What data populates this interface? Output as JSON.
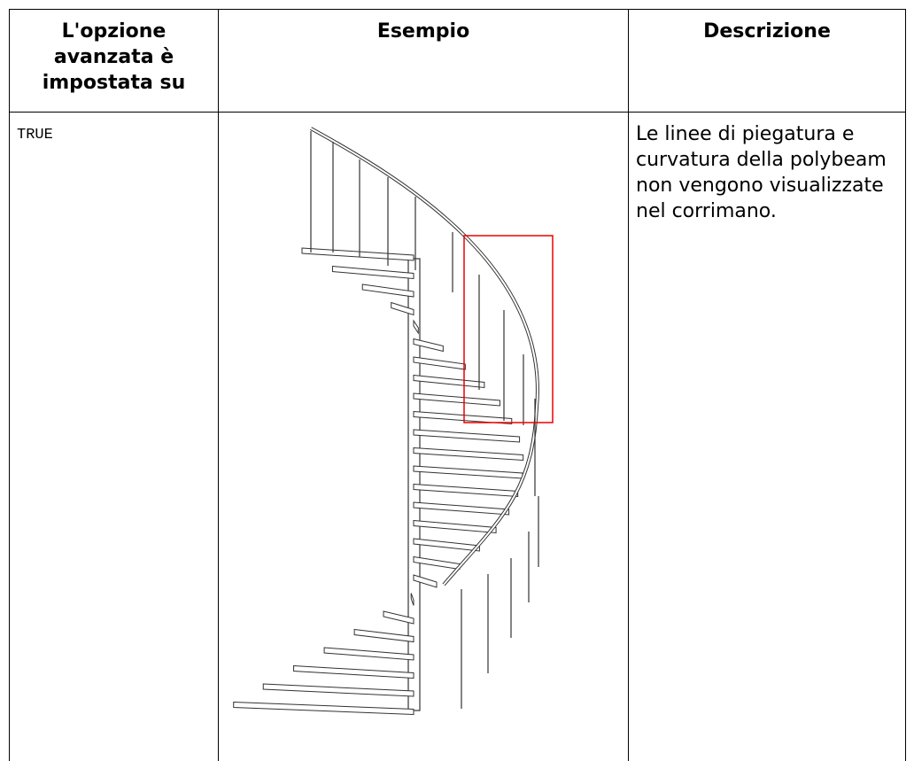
{
  "table": {
    "header": [
      "L'opzione avanzata è impostata su",
      "Esempio",
      "Descrizione"
    ],
    "rows": [
      {
        "option": "TRUE",
        "description": "Le linee di piegatura e curvatura della polybeam non vengono visualizzate nel corrimano."
      }
    ]
  }
}
